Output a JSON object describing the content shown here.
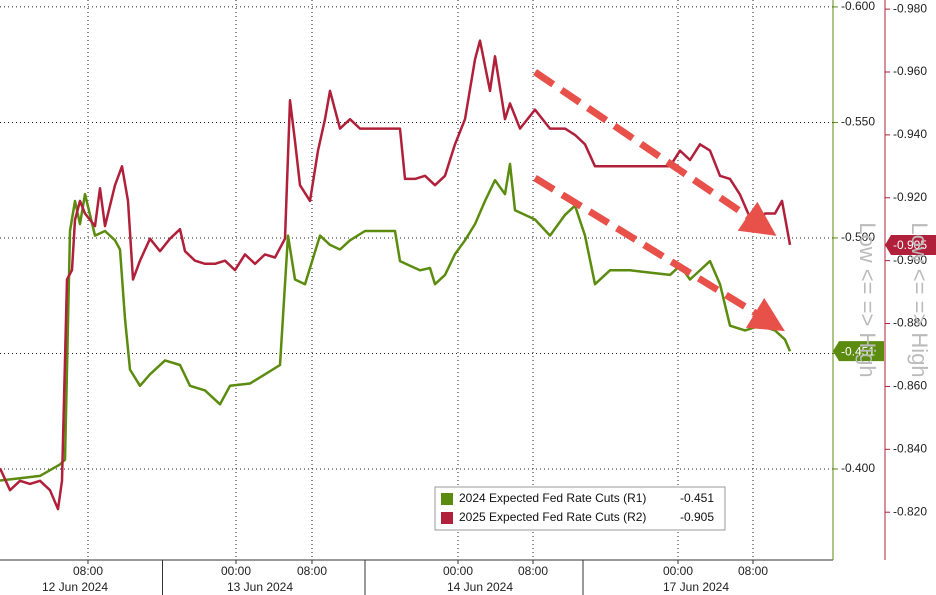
{
  "chart_data": {
    "type": "line",
    "y_label": "Low <= => High",
    "y2_label": "Low <= => High",
    "xlim": [
      0,
      83.3
    ],
    "xticks": [
      {
        "value": 8.8,
        "label": "08:00"
      },
      {
        "value": 23.6,
        "label": "00:00"
      },
      {
        "value": 31.2,
        "label": "08:00"
      },
      {
        "value": 45.8,
        "label": "00:00"
      },
      {
        "value": 53.3,
        "label": "08:00"
      },
      {
        "value": 67.8,
        "label": "00:00"
      },
      {
        "value": 75.3,
        "label": "08:00"
      }
    ],
    "day_labels": [
      {
        "value": 7.5,
        "label": "12 Jun 2024"
      },
      {
        "value": 26,
        "label": "13 Jun 2024"
      },
      {
        "value": 48,
        "label": "14 Jun 2024"
      },
      {
        "value": 69.6,
        "label": "17 Jun 2024"
      }
    ],
    "ylim": [
      -0.3606,
      -0.603
    ],
    "yticks": [
      {
        "value": -0.6,
        "label": "-0.600"
      },
      {
        "value": -0.55,
        "label": "-0.550"
      },
      {
        "value": -0.5,
        "label": "-0.500"
      },
      {
        "value": -0.45,
        "label": "-0.450"
      },
      {
        "value": -0.4,
        "label": "-0.400"
      }
    ],
    "y2lim": [
      -0.8048,
      -0.9829
    ],
    "y2ticks": [
      {
        "value": -0.98,
        "label": "-0.980"
      },
      {
        "value": -0.96,
        "label": "-0.960"
      },
      {
        "value": -0.94,
        "label": "-0.940"
      },
      {
        "value": -0.92,
        "label": "-0.920"
      },
      {
        "value": -0.9,
        "label": "-0.900"
      },
      {
        "value": -0.88,
        "label": "-0.880"
      },
      {
        "value": -0.86,
        "label": "-0.860"
      },
      {
        "value": -0.84,
        "label": "-0.840"
      },
      {
        "value": -0.82,
        "label": "-0.820"
      }
    ],
    "grid": true,
    "series": [
      {
        "name": "2024 Expected Fed Rate Cuts (R1)",
        "color": "#5b8c0f",
        "axis": "y",
        "x": [
          0,
          2,
          4,
          6,
          6.5,
          7,
          7.5,
          8,
          8.5,
          9.5,
          10.5,
          11.5,
          12,
          12.5,
          13,
          14,
          15,
          16.5,
          18,
          19,
          20.5,
          22,
          23,
          25,
          26.5,
          28,
          28.8,
          29.5,
          30.5,
          32,
          33,
          34,
          35,
          36.5,
          38,
          39.5,
          40,
          41,
          42,
          43,
          43.5,
          44.5,
          45.5,
          46.5,
          47.5,
          48.5,
          49.5,
          50.5,
          51,
          51.5,
          52.5,
          53.5,
          55,
          56.5,
          57.5,
          58.5,
          59.5,
          61,
          63,
          65,
          67,
          68,
          69,
          71,
          72,
          73,
          74.5,
          76,
          77.5,
          78.5,
          79
        ],
        "values": [
          -0.395,
          -0.396,
          -0.397,
          -0.402,
          -0.404,
          -0.503,
          -0.516,
          -0.506,
          -0.519,
          -0.501,
          -0.503,
          -0.499,
          -0.495,
          -0.465,
          -0.443,
          -0.436,
          -0.441,
          -0.447,
          -0.445,
          -0.436,
          -0.434,
          -0.428,
          -0.436,
          -0.437,
          -0.441,
          -0.445,
          -0.501,
          -0.482,
          -0.48,
          -0.501,
          -0.497,
          -0.495,
          -0.499,
          -0.503,
          -0.503,
          -0.503,
          -0.49,
          -0.488,
          -0.486,
          -0.487,
          -0.48,
          -0.484,
          -0.493,
          -0.499,
          -0.506,
          -0.516,
          -0.525,
          -0.519,
          -0.532,
          -0.512,
          -0.51,
          -0.508,
          -0.501,
          -0.51,
          -0.514,
          -0.501,
          -0.48,
          -0.486,
          -0.486,
          -0.485,
          -0.484,
          -0.488,
          -0.482,
          -0.49,
          -0.48,
          -0.462,
          -0.46,
          -0.462,
          -0.46,
          -0.456,
          -0.451
        ]
      },
      {
        "name": "2025 Expected Fed Rate Cuts (R2)",
        "color": "#b0203a",
        "axis": "y2",
        "x": [
          0,
          1,
          2,
          3,
          4,
          5,
          5.8,
          6.2,
          6.7,
          7.2,
          7.5,
          8,
          8.5,
          9.5,
          10,
          10.5,
          11.5,
          12.2,
          12.8,
          13.3,
          14,
          15,
          16,
          17,
          18,
          18.5,
          19.5,
          20.5,
          21.5,
          22.5,
          23.5,
          24.5,
          25.5,
          26.5,
          27.5,
          28.5,
          29,
          29.5,
          30,
          31,
          31.8,
          32.5,
          33,
          34,
          35,
          36,
          37.5,
          40,
          40.5,
          41.5,
          42.5,
          43.5,
          44.5,
          45.5,
          46.5,
          47.5,
          48,
          49,
          49.5,
          50.5,
          51,
          52,
          53.5,
          55,
          56.5,
          57.5,
          58.5,
          59.5,
          61.5,
          64.5,
          67,
          68,
          69,
          70,
          71,
          72,
          73,
          74,
          75.5,
          76.5,
          77.5,
          78.2,
          79
        ],
        "values": [
          -0.834,
          -0.827,
          -0.83,
          -0.829,
          -0.83,
          -0.827,
          -0.821,
          -0.83,
          -0.894,
          -0.897,
          -0.913,
          -0.919,
          -0.915,
          -0.911,
          -0.923,
          -0.911,
          -0.924,
          -0.93,
          -0.919,
          -0.894,
          -0.9,
          -0.907,
          -0.903,
          -0.907,
          -0.91,
          -0.903,
          -0.9,
          -0.899,
          -0.899,
          -0.9,
          -0.897,
          -0.902,
          -0.899,
          -0.902,
          -0.901,
          -0.907,
          -0.951,
          -0.938,
          -0.924,
          -0.919,
          -0.935,
          -0.945,
          -0.954,
          -0.942,
          -0.945,
          -0.942,
          -0.942,
          -0.942,
          -0.926,
          -0.926,
          -0.927,
          -0.924,
          -0.927,
          -0.937,
          -0.945,
          -0.964,
          -0.97,
          -0.954,
          -0.965,
          -0.945,
          -0.95,
          -0.942,
          -0.948,
          -0.942,
          -0.942,
          -0.94,
          -0.937,
          -0.93,
          -0.93,
          -0.93,
          -0.93,
          -0.935,
          -0.932,
          -0.937,
          -0.935,
          -0.927,
          -0.926,
          -0.921,
          -0.91,
          -0.915,
          -0.915,
          -0.919,
          -0.905
        ]
      }
    ]
  }
}
